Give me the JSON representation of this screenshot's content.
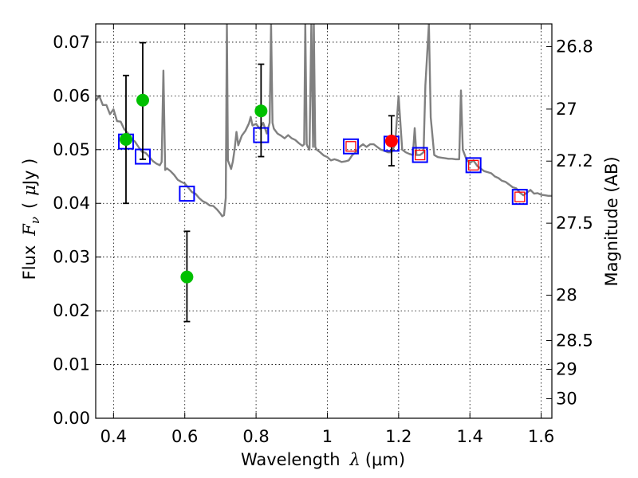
{
  "chart_data": {
    "type": "scatter",
    "xlabel": "Wavelength",
    "xlabel_symbol": "λ",
    "xlabel_unit": "(μm)",
    "ylabel": "Flux",
    "ylabel_symbol": "F",
    "ylabel_subscript": "ν",
    "ylabel_unit_open": "(",
    "ylabel_unit_mu": "μ",
    "ylabel_unit_rest": "Jy )",
    "y2label": "Magnitude (AB)",
    "xlim": [
      0.35,
      1.63
    ],
    "ylim": [
      0.0,
      0.0734
    ],
    "grid": true,
    "x_ticks": [
      {
        "value": 0.4,
        "label": "0.4"
      },
      {
        "value": 0.6,
        "label": "0.6"
      },
      {
        "value": 0.8,
        "label": "0.8"
      },
      {
        "value": 1.0,
        "label": "1"
      },
      {
        "value": 1.2,
        "label": "1.2"
      },
      {
        "value": 1.4,
        "label": "1.4"
      },
      {
        "value": 1.6,
        "label": "1.6"
      }
    ],
    "y_ticks": [
      {
        "value": 0.0,
        "label": "0.00"
      },
      {
        "value": 0.01,
        "label": "0.01"
      },
      {
        "value": 0.02,
        "label": "0.02"
      },
      {
        "value": 0.03,
        "label": "0.03"
      },
      {
        "value": 0.04,
        "label": "0.04"
      },
      {
        "value": 0.05,
        "label": "0.05"
      },
      {
        "value": 0.06,
        "label": "0.06"
      },
      {
        "value": 0.07,
        "label": "0.07"
      }
    ],
    "mag_ticks": [
      {
        "value": 26.8,
        "label": "26.8"
      },
      {
        "value": 27.0,
        "label": "27"
      },
      {
        "value": 27.2,
        "label": "27.2"
      },
      {
        "value": 27.5,
        "label": "27.5"
      },
      {
        "value": 28.0,
        "label": "28"
      },
      {
        "value": 28.5,
        "label": "28.5"
      },
      {
        "value": 29.0,
        "label": "29"
      },
      {
        "value": 30.0,
        "label": "30"
      }
    ],
    "series": [
      {
        "name": "model spectrum",
        "kind": "line",
        "color": "#808080",
        "points": [
          [
            0.35,
            0.0591
          ],
          [
            0.36,
            0.06
          ],
          [
            0.37,
            0.0583
          ],
          [
            0.38,
            0.0583
          ],
          [
            0.39,
            0.0566
          ],
          [
            0.4,
            0.0575
          ],
          [
            0.41,
            0.0553
          ],
          [
            0.42,
            0.0552
          ],
          [
            0.43,
            0.0538
          ],
          [
            0.44,
            0.0531
          ],
          [
            0.45,
            0.052
          ],
          [
            0.46,
            0.0515
          ],
          [
            0.47,
            0.0505
          ],
          [
            0.48,
            0.0496
          ],
          [
            0.49,
            0.0494
          ],
          [
            0.5,
            0.0487
          ],
          [
            0.51,
            0.0479
          ],
          [
            0.52,
            0.0474
          ],
          [
            0.53,
            0.0471
          ],
          [
            0.535,
            0.0477
          ],
          [
            0.54,
            0.0647
          ],
          [
            0.545,
            0.0462
          ],
          [
            0.55,
            0.0465
          ],
          [
            0.56,
            0.046
          ],
          [
            0.57,
            0.0453
          ],
          [
            0.58,
            0.0444
          ],
          [
            0.59,
            0.044
          ],
          [
            0.6,
            0.0437
          ],
          [
            0.61,
            0.0429
          ],
          [
            0.62,
            0.0421
          ],
          [
            0.63,
            0.0418
          ],
          [
            0.64,
            0.041
          ],
          [
            0.65,
            0.0404
          ],
          [
            0.66,
            0.0401
          ],
          [
            0.67,
            0.0396
          ],
          [
            0.68,
            0.0395
          ],
          [
            0.69,
            0.0389
          ],
          [
            0.7,
            0.0381
          ],
          [
            0.705,
            0.0376
          ],
          [
            0.71,
            0.0378
          ],
          [
            0.715,
            0.041
          ],
          [
            0.718,
            0.0734
          ],
          [
            0.721,
            0.048
          ],
          [
            0.73,
            0.0464
          ],
          [
            0.735,
            0.0478
          ],
          [
            0.74,
            0.0502
          ],
          [
            0.745,
            0.0533
          ],
          [
            0.75,
            0.0508
          ],
          [
            0.76,
            0.0526
          ],
          [
            0.77,
            0.0535
          ],
          [
            0.78,
            0.0549
          ],
          [
            0.785,
            0.0561
          ],
          [
            0.79,
            0.0545
          ],
          [
            0.8,
            0.0548
          ],
          [
            0.81,
            0.0539
          ],
          [
            0.82,
            0.055
          ],
          [
            0.83,
            0.053
          ],
          [
            0.838,
            0.055
          ],
          [
            0.842,
            0.0734
          ],
          [
            0.846,
            0.055
          ],
          [
            0.85,
            0.0539
          ],
          [
            0.86,
            0.053
          ],
          [
            0.87,
            0.0526
          ],
          [
            0.88,
            0.0521
          ],
          [
            0.89,
            0.0527
          ],
          [
            0.9,
            0.0521
          ],
          [
            0.91,
            0.0518
          ],
          [
            0.92,
            0.0512
          ],
          [
            0.93,
            0.0507
          ],
          [
            0.935,
            0.051
          ],
          [
            0.938,
            0.0734
          ],
          [
            0.942,
            0.051
          ],
          [
            0.945,
            0.0505
          ],
          [
            0.95,
            0.05
          ],
          [
            0.955,
            0.0734
          ],
          [
            0.96,
            0.0505
          ],
          [
            0.962,
            0.0734
          ],
          [
            0.966,
            0.0505
          ],
          [
            0.97,
            0.05
          ],
          [
            0.98,
            0.0495
          ],
          [
            0.99,
            0.0489
          ],
          [
            1.0,
            0.0486
          ],
          [
            1.01,
            0.048
          ],
          [
            1.02,
            0.0482
          ],
          [
            1.03,
            0.048
          ],
          [
            1.04,
            0.0477
          ],
          [
            1.05,
            0.0478
          ],
          [
            1.06,
            0.048
          ],
          [
            1.07,
            0.049
          ],
          [
            1.08,
            0.0495
          ],
          [
            1.09,
            0.0505
          ],
          [
            1.1,
            0.051
          ],
          [
            1.11,
            0.0505
          ],
          [
            1.12,
            0.051
          ],
          [
            1.13,
            0.051
          ],
          [
            1.14,
            0.0505
          ],
          [
            1.15,
            0.05
          ],
          [
            1.16,
            0.0498
          ],
          [
            1.17,
            0.0495
          ],
          [
            1.18,
            0.0495
          ],
          [
            1.19,
            0.051
          ],
          [
            1.2,
            0.06
          ],
          [
            1.21,
            0.05
          ],
          [
            1.22,
            0.0495
          ],
          [
            1.23,
            0.0492
          ],
          [
            1.24,
            0.049
          ],
          [
            1.245,
            0.054
          ],
          [
            1.25,
            0.049
          ],
          [
            1.26,
            0.049
          ],
          [
            1.27,
            0.0495
          ],
          [
            1.275,
            0.062
          ],
          [
            1.285,
            0.0734
          ],
          [
            1.29,
            0.056
          ],
          [
            1.3,
            0.049
          ],
          [
            1.31,
            0.0486
          ],
          [
            1.32,
            0.0485
          ],
          [
            1.33,
            0.0484
          ],
          [
            1.34,
            0.0483
          ],
          [
            1.35,
            0.0483
          ],
          [
            1.36,
            0.0482
          ],
          [
            1.37,
            0.0482
          ],
          [
            1.375,
            0.061
          ],
          [
            1.38,
            0.05
          ],
          [
            1.39,
            0.0482
          ],
          [
            1.4,
            0.0475
          ],
          [
            1.41,
            0.048
          ],
          [
            1.42,
            0.047
          ],
          [
            1.43,
            0.0465
          ],
          [
            1.44,
            0.046
          ],
          [
            1.45,
            0.0458
          ],
          [
            1.46,
            0.0456
          ],
          [
            1.47,
            0.045
          ],
          [
            1.48,
            0.0447
          ],
          [
            1.49,
            0.0442
          ],
          [
            1.5,
            0.044
          ],
          [
            1.51,
            0.0435
          ],
          [
            1.52,
            0.043
          ],
          [
            1.53,
            0.0428
          ],
          [
            1.54,
            0.042
          ],
          [
            1.55,
            0.0415
          ],
          [
            1.56,
            0.042
          ],
          [
            1.57,
            0.0425
          ],
          [
            1.58,
            0.0418
          ],
          [
            1.59,
            0.0419
          ],
          [
            1.6,
            0.0416
          ],
          [
            1.61,
            0.0415
          ],
          [
            1.62,
            0.0414
          ],
          [
            1.63,
            0.0414
          ]
        ]
      },
      {
        "name": "model photometry (blue boxes)",
        "kind": "open-square",
        "color": "#0000ff",
        "points": [
          [
            0.435,
            0.0515
          ],
          [
            0.482,
            0.0487
          ],
          [
            0.606,
            0.0418
          ],
          [
            0.814,
            0.0527
          ],
          [
            1.066,
            0.0506
          ],
          [
            1.18,
            0.0511
          ],
          [
            1.26,
            0.049
          ],
          [
            1.41,
            0.0471
          ],
          [
            1.54,
            0.0412
          ]
        ]
      },
      {
        "name": "model photometry (red boxes)",
        "kind": "open-square-small",
        "color": "#ff0000",
        "points": [
          [
            1.066,
            0.0506
          ],
          [
            1.26,
            0.049
          ],
          [
            1.41,
            0.0471
          ],
          [
            1.54,
            0.0412
          ]
        ]
      },
      {
        "name": "observed fluxes (green)",
        "kind": "filled-circle",
        "color": "#00c000",
        "points": [
          {
            "x": 0.435,
            "y": 0.0519,
            "ylo": 0.04,
            "yhi": 0.0638
          },
          {
            "x": 0.482,
            "y": 0.0592,
            "ylo": 0.0482,
            "yhi": 0.0699
          },
          {
            "x": 0.606,
            "y": 0.0263,
            "ylo": 0.018,
            "yhi": 0.0348
          },
          {
            "x": 0.814,
            "y": 0.0572,
            "ylo": 0.0487,
            "yhi": 0.0659
          }
        ]
      },
      {
        "name": "observed flux (red)",
        "kind": "filled-circle",
        "color": "#ff0000",
        "points": [
          {
            "x": 1.18,
            "y": 0.0516,
            "ylo": 0.047,
            "yhi": 0.0563
          }
        ]
      }
    ]
  }
}
